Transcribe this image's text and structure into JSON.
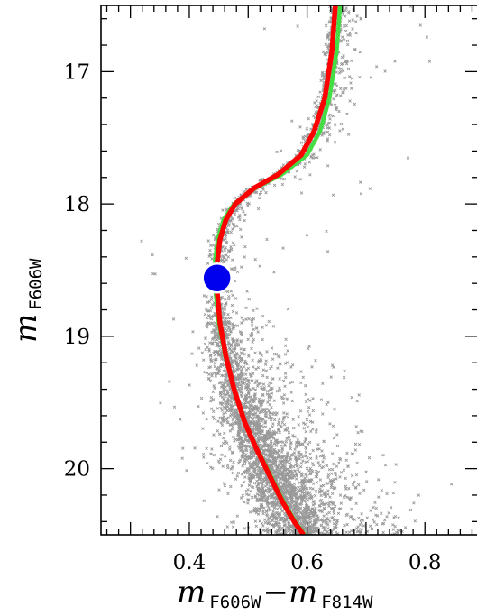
{
  "chart_data": {
    "type": "scatter",
    "title": "",
    "xlabel": {
      "main": "m",
      "sub1": "F606W",
      "dash": "−",
      "main2": "m",
      "sub2": "F814W"
    },
    "ylabel": {
      "main": "m",
      "sub": "F606W"
    },
    "xlim": [
      0.25,
      0.89
    ],
    "ylim": [
      20.5,
      16.5
    ],
    "y_inverted": true,
    "x_ticks": [
      0.4,
      0.6,
      0.8
    ],
    "x_tick_labels": [
      "0.4",
      "0.6",
      "0.8"
    ],
    "y_ticks": [
      17,
      18,
      19,
      20
    ],
    "y_tick_labels": [
      "17",
      "18",
      "19",
      "20"
    ],
    "grid": false,
    "colors": {
      "points": "#999999",
      "isochrone_red": "#ff0000",
      "isochrone_green": "#44dd44",
      "marker": "#0000ee"
    },
    "isochrone_red": {
      "x": [
        0.648,
        0.642,
        0.63,
        0.612,
        0.59,
        0.55,
        0.51,
        0.478,
        0.462,
        0.452,
        0.447,
        0.447,
        0.452,
        0.462,
        0.476,
        0.494,
        0.514,
        0.536,
        0.558,
        0.578,
        0.594
      ],
      "y": [
        16.5,
        16.85,
        17.2,
        17.45,
        17.63,
        17.78,
        17.88,
        18.0,
        18.12,
        18.27,
        18.45,
        18.65,
        18.9,
        19.15,
        19.4,
        19.65,
        19.85,
        20.05,
        20.25,
        20.4,
        20.5
      ]
    },
    "isochrone_green": {
      "x": [
        0.656,
        0.65,
        0.638,
        0.622,
        0.6,
        0.556,
        0.512,
        0.476,
        0.458,
        0.448,
        0.443,
        0.444,
        0.45,
        0.461,
        0.476,
        0.494,
        0.515,
        0.538,
        0.56,
        0.58,
        0.596
      ],
      "y": [
        16.5,
        16.85,
        17.2,
        17.45,
        17.63,
        17.78,
        17.88,
        18.0,
        18.12,
        18.27,
        18.45,
        18.65,
        18.9,
        19.15,
        19.4,
        19.65,
        19.85,
        20.05,
        20.25,
        20.4,
        20.5
      ]
    },
    "marker_point": {
      "x": 0.447,
      "y": 18.56
    },
    "scatter_note_values": {
      "n_points": 4200,
      "seed": 7
    }
  }
}
